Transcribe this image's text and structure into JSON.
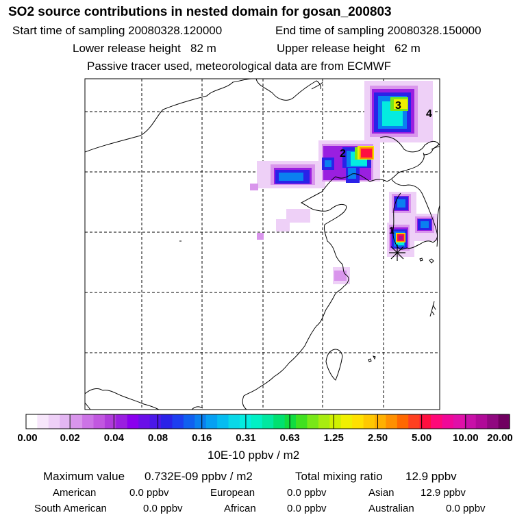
{
  "header": {
    "title": "SO2 source contributions in nested domain for gosan_200803",
    "start_time": "Start time of sampling 20080328.120000",
    "end_time": "End time of sampling 20080328.150000",
    "lower_height": "Lower release height   82 m",
    "upper_height": "Upper release height   62 m",
    "tracer_note": "Passive tracer used, meteorological data are from ECMWF"
  },
  "chart_data": {
    "type": "heatmap",
    "title": "SO2 source contributions in nested domain for gosan_200803",
    "colorbar": {
      "units": "10E-10 ppbv / m2",
      "ticks": [
        "0.00",
        "0.02",
        "0.04",
        "0.08",
        "0.16",
        "0.31",
        "0.63",
        "1.25",
        "2.50",
        "5.00",
        "10.00",
        "20.00"
      ],
      "colors": [
        "#ffffff",
        "#f7e6fb",
        "#eed0f7",
        "#e3b6f2",
        "#d995ec",
        "#cc73e6",
        "#c157e0",
        "#b03cdb",
        "#9a1fe0",
        "#8a00ee",
        "#6a0fe8",
        "#4a18e8",
        "#2a22e8",
        "#1d3ef0",
        "#1060f0",
        "#0a80f0",
        "#06a0f2",
        "#05bcf0",
        "#08d8e8",
        "#04ece0",
        "#00f0c4",
        "#00e8a0",
        "#00e070",
        "#10dc40",
        "#40e020",
        "#78e818",
        "#a8ec10",
        "#d0f000",
        "#f0f000",
        "#ffe000",
        "#ffc800",
        "#ffb000",
        "#ff9000",
        "#ff6800",
        "#ff4020",
        "#ff1040",
        "#ff0878",
        "#f00898",
        "#e010a8",
        "#c810a8",
        "#b00a98",
        "#900880",
        "#700060"
      ]
    },
    "markers": [
      {
        "label": "1",
        "kind": "hotspot"
      },
      {
        "label": "2",
        "kind": "hotspot"
      },
      {
        "label": "3",
        "kind": "hotspot"
      },
      {
        "label": "4",
        "kind": "hotspot"
      }
    ],
    "receptor": "gosan"
  },
  "summary": {
    "max_label": "Maximum value",
    "max_value": "0.732E-09 ppbv / m2",
    "total_label": "Total mixing ratio",
    "total_value": "12.9 ppbv",
    "regions": [
      {
        "name": "American",
        "value": "0.0 ppbv"
      },
      {
        "name": "European",
        "value": "0.0 ppbv"
      },
      {
        "name": "Asian",
        "value": "12.9 ppbv"
      },
      {
        "name": "South American",
        "value": "0.0 ppbv"
      },
      {
        "name": "African",
        "value": "0.0 ppbv"
      },
      {
        "name": "Australian",
        "value": "0.0 ppbv"
      }
    ]
  }
}
